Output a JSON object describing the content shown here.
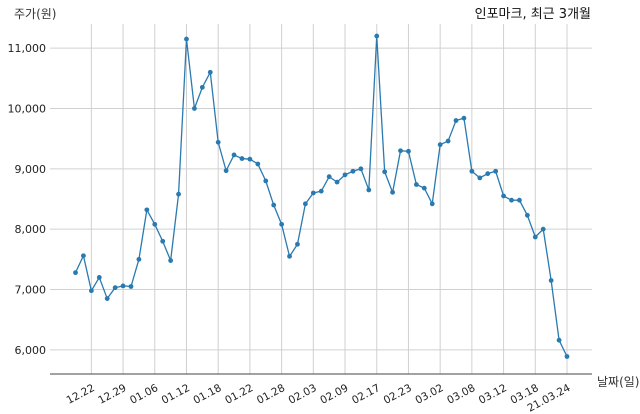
{
  "chart_data": {
    "type": "line",
    "title": "인포마크, 최근 3개월",
    "ylabel": "주가(원)",
    "xlabel": "날짜(일)",
    "ylim": [
      5600,
      11400
    ],
    "yticks": [
      6000,
      7000,
      8000,
      9000,
      10000,
      11000
    ],
    "ytick_labels": [
      "6,000",
      "7,000",
      "8,000",
      "9,000",
      "10,000",
      "11,000"
    ],
    "grid": true,
    "color": "#2a7ab0",
    "x_tick_labels": [
      "12.22",
      "12.29",
      "01.06",
      "01.12",
      "01.18",
      "01.22",
      "01.28",
      "02.03",
      "02.09",
      "02.17",
      "02.23",
      "03.02",
      "03.08",
      "03.12",
      "03.18",
      "21.03.24"
    ],
    "x_tick_indices": [
      2,
      6,
      10,
      14,
      18,
      22,
      26,
      30,
      34,
      38,
      42,
      46,
      50,
      54,
      58,
      62
    ],
    "series": [
      {
        "values": [
          7280,
          7560,
          6980,
          7200,
          6850,
          7030,
          7060,
          7050,
          7500,
          8320,
          8080,
          7800,
          7480,
          8580,
          11150,
          10000,
          10350,
          10600,
          9440,
          8970,
          9230,
          9170,
          9160,
          9080,
          8800,
          8400,
          8080,
          7550,
          7750,
          8420,
          8600,
          8630,
          8870,
          8780,
          8900,
          8960,
          9000,
          8650,
          11200,
          8950,
          8610,
          9300,
          9290,
          8740,
          8680,
          8420,
          9400,
          9460,
          9800,
          9840,
          8960,
          8850,
          8920,
          8960,
          8550,
          8480,
          8480,
          8230,
          7870,
          8000,
          7150,
          6160,
          5890
        ]
      }
    ]
  }
}
